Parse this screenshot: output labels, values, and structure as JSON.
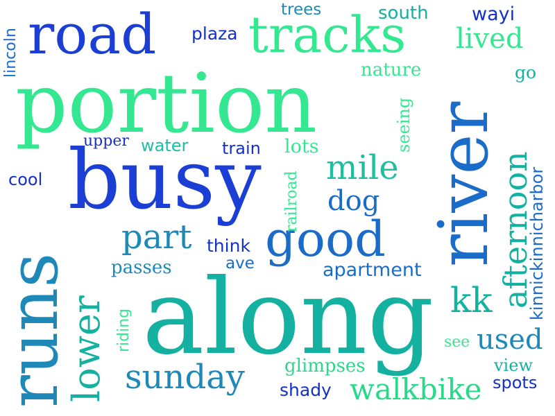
{
  "words": {
    "portion": "portion",
    "along": "along",
    "busy": "busy",
    "river": "river",
    "runs": "runs",
    "road": "road",
    "tracks": "tracks",
    "good": "good",
    "afternoon": "afternoon",
    "lower": "lower",
    "sunday": "sunday",
    "mile": "mile",
    "part": "part",
    "walkbike": "walkbike",
    "kk": "kk",
    "used": "used",
    "dog": "dog",
    "lived": "lived",
    "kinnickinnicharbor": "kinnickinnicharbor",
    "apartment": "apartment",
    "glimpses": "glimpses",
    "passes": "passes",
    "nature": "nature",
    "south": "south",
    "trees": "trees",
    "plaza": "plaza",
    "wayi": "wayi",
    "lincoln": "lincoln",
    "go": "go",
    "seeing": "seeing",
    "upper": "upper",
    "water": "water",
    "train": "train",
    "lots": "lots",
    "cool": "cool",
    "railroad": "railroad",
    "think": "think",
    "ave": "ave",
    "riding": "riding",
    "see": "see",
    "view": "view",
    "shady": "shady",
    "spots": "spots"
  },
  "colors": {
    "background": "#ffffff",
    "royal_blue": "#1b3fd4",
    "deep_blue": "#1530c8",
    "mid_blue": "#1a6cc8",
    "teal_blue": "#1e88b8",
    "teal": "#14b0a0",
    "sea_green": "#1cc0a0",
    "mint": "#33e890",
    "light_mint": "#2ad88a"
  }
}
